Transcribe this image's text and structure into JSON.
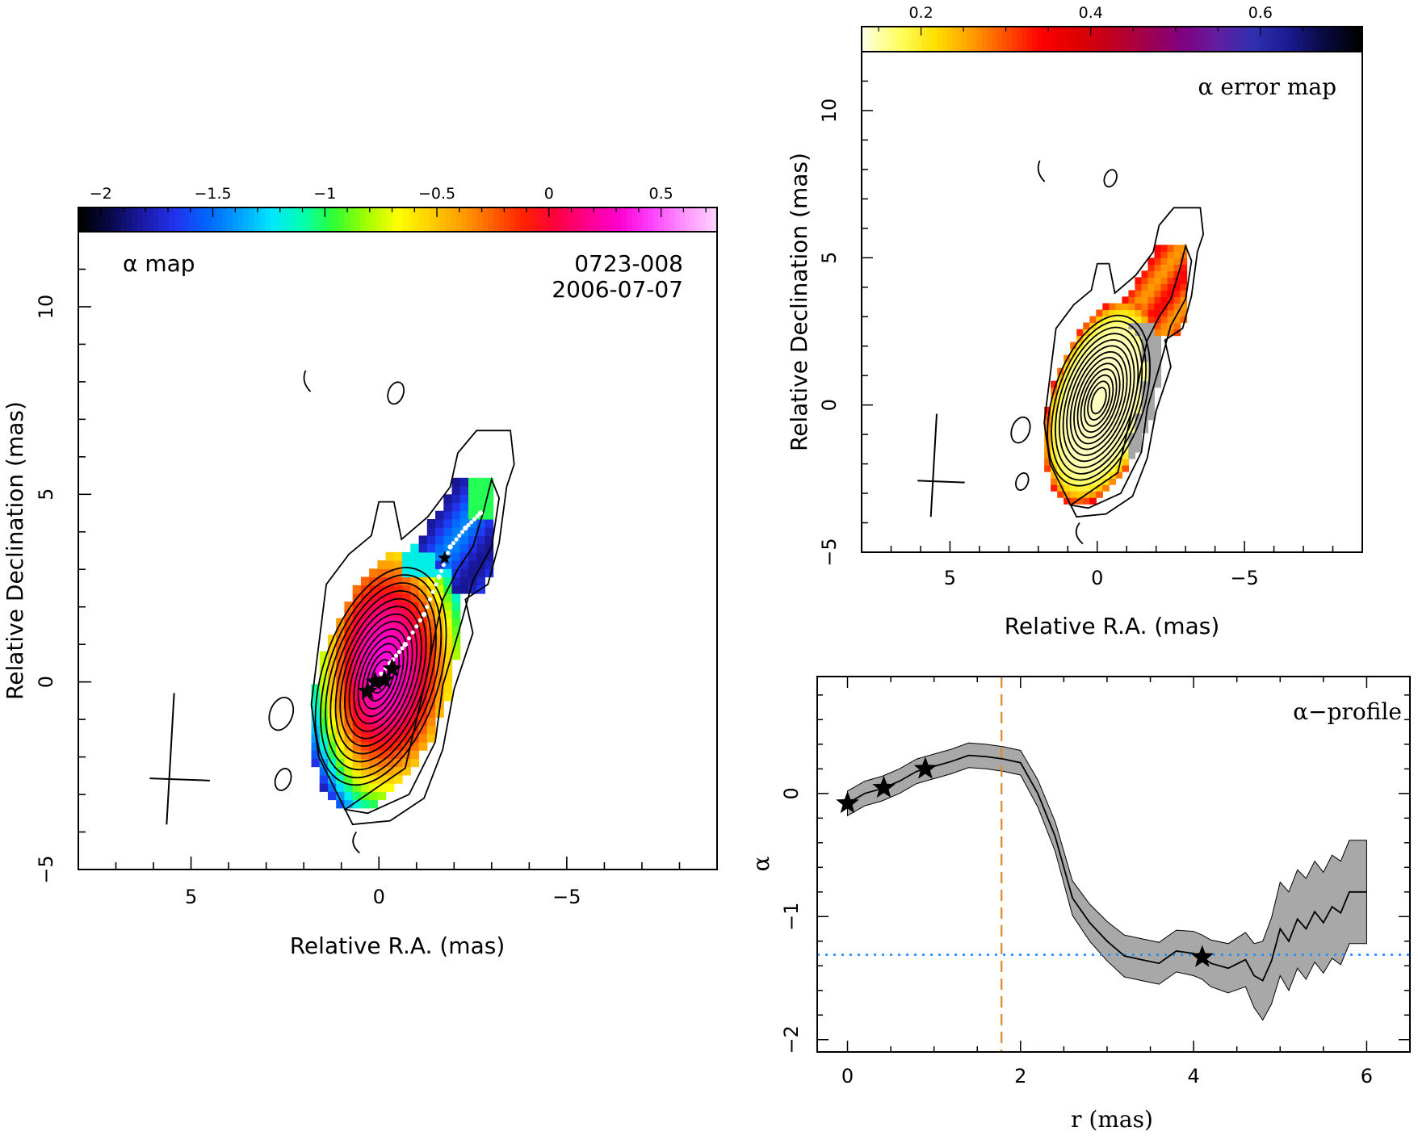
{
  "chart_data": [
    {
      "type": "heatmap",
      "panel": "alpha-map",
      "label": "α map",
      "source": "0723-008",
      "date": "2006-07-07",
      "xlabel": "Relative R.A. (mas)",
      "ylabel": "Relative Declination (mas)",
      "xlim": [
        8,
        -9
      ],
      "ylim": [
        -5,
        12
      ],
      "xticks": [
        5,
        0,
        -5
      ],
      "yticks": [
        -5,
        0,
        5,
        10
      ],
      "colorbar": {
        "range": [
          -2.1,
          0.75
        ],
        "ticks": [
          -2,
          -1.5,
          -1,
          -0.5,
          0,
          0.5
        ],
        "colors": [
          "#000000",
          "#0a0a50",
          "#1b1ba8",
          "#2233ee",
          "#0066ff",
          "#00a0ff",
          "#00e6ff",
          "#00ffb0",
          "#30ff30",
          "#a0ff00",
          "#ffff00",
          "#ffd000",
          "#ffa000",
          "#ff6000",
          "#ff2000",
          "#ff0040",
          "#ff0090",
          "#ff00d0",
          "#ff40ff",
          "#ff90ff",
          "#ffd0ff"
        ]
      },
      "profile_markers_xy": [
        [
          0.3,
          -0.25
        ],
        [
          0.1,
          0.0
        ],
        [
          -0.15,
          0.05
        ],
        [
          -0.35,
          0.35
        ],
        [
          -1.75,
          3.3
        ]
      ],
      "ridge_line_xy": [
        [
          0.3,
          -0.2
        ],
        [
          -0.3,
          0.5
        ],
        [
          -0.7,
          1.0
        ],
        [
          -1.2,
          1.8
        ],
        [
          -1.6,
          2.8
        ],
        [
          -1.9,
          3.6
        ],
        [
          -2.3,
          4.1
        ],
        [
          -2.7,
          4.5
        ]
      ],
      "beam": {
        "center_xy": [
          5.6,
          -2.6
        ],
        "major_mas": 2.3,
        "minor_mas": 1.1,
        "pa_deg": -2
      },
      "grid": false
    },
    {
      "type": "heatmap",
      "panel": "alpha-error-map",
      "label": "α error map",
      "xlabel": "Relative R.A. (mas)",
      "ylabel": "Relative Declination (mas)",
      "xlim": [
        8,
        -9
      ],
      "ylim": [
        -5,
        12
      ],
      "xticks": [
        5,
        0,
        -5
      ],
      "yticks": [
        -5,
        0,
        5,
        10
      ],
      "colorbar": {
        "range": [
          0.13,
          0.72
        ],
        "ticks": [
          0.2,
          0.4,
          0.6
        ],
        "colors": [
          "#ffffe0",
          "#ffff60",
          "#ffe000",
          "#ffa000",
          "#ff5000",
          "#ff0000",
          "#e00000",
          "#c00020",
          "#a00050",
          "#800080",
          "#6020a0",
          "#3030b0",
          "#1a1a90",
          "#0a0a40",
          "#000000"
        ]
      },
      "grid": false
    },
    {
      "type": "line",
      "panel": "alpha-profile",
      "label": "α−profile",
      "xlabel": "r (mas)",
      "ylabel": "α",
      "xlim": [
        -0.35,
        6.5
      ],
      "ylim": [
        -2.1,
        0.95
      ],
      "xticks": [
        0,
        2,
        4,
        6
      ],
      "yticks": [
        0,
        -1,
        -2
      ],
      "series": [
        {
          "x": [
            0,
            0.2,
            0.4,
            0.6,
            0.8,
            1.0,
            1.2,
            1.4,
            1.6,
            1.8,
            2.0,
            2.2,
            2.4,
            2.6,
            2.8,
            3.0,
            3.2,
            3.4,
            3.6,
            3.8,
            4.0,
            4.1,
            4.2,
            4.4,
            4.6,
            4.7,
            4.8,
            4.9,
            5.0,
            5.1,
            5.2,
            5.3,
            5.4,
            5.5,
            5.6,
            5.7,
            5.8,
            6.0
          ],
          "y": [
            -0.08,
            0.0,
            0.04,
            0.1,
            0.18,
            0.22,
            0.26,
            0.31,
            0.3,
            0.28,
            0.25,
            0.0,
            -0.35,
            -0.85,
            -1.05,
            -1.2,
            -1.32,
            -1.35,
            -1.38,
            -1.28,
            -1.3,
            -1.33,
            -1.38,
            -1.42,
            -1.35,
            -1.48,
            -1.52,
            -1.36,
            -1.1,
            -1.2,
            -1.02,
            -1.1,
            -0.96,
            -1.05,
            -0.92,
            -0.97,
            -0.8,
            -0.8
          ]
        }
      ],
      "uncertainty": [
        0.1,
        0.1,
        0.1,
        0.1,
        0.1,
        0.1,
        0.1,
        0.1,
        0.1,
        0.1,
        0.1,
        0.11,
        0.12,
        0.14,
        0.15,
        0.16,
        0.17,
        0.17,
        0.17,
        0.17,
        0.18,
        0.18,
        0.19,
        0.2,
        0.22,
        0.26,
        0.32,
        0.35,
        0.38,
        0.4,
        0.4,
        0.41,
        0.41,
        0.41,
        0.42,
        0.42,
        0.42,
        0.42
      ],
      "markers_x": [
        0,
        0.42,
        0.9,
        4.1
      ],
      "vertical_line_x": 1.78,
      "horizontal_line_y": -1.31,
      "vertical_line_color": "#e0882a",
      "horizontal_line_color": "#1e90ff",
      "band_color": "#a8a8a8",
      "grid": false
    }
  ]
}
